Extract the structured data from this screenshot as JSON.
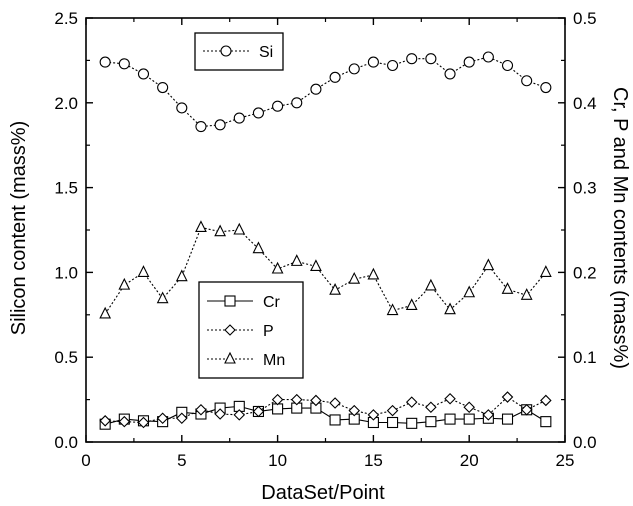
{
  "chart_data": {
    "type": "line",
    "xlabel": "DataSet/Point",
    "ylabel_left": "Silicon content (mass%)",
    "ylabel_right": "Cr, P and Mn contents (mass%)",
    "xlim": [
      0,
      25
    ],
    "ylim_left": [
      0,
      2.5
    ],
    "ylim_right": [
      0,
      0.5
    ],
    "x_ticks": [
      "0",
      "5",
      "10",
      "15",
      "20",
      "25"
    ],
    "y_left_ticks": [
      "0.0",
      "0.5",
      "1.0",
      "1.5",
      "2.0",
      "2.5"
    ],
    "y_right_ticks": [
      "0.0",
      "0.1",
      "0.2",
      "0.3",
      "0.4",
      "0.5"
    ],
    "grid": false,
    "x": [
      1,
      2,
      3,
      4,
      5,
      6,
      7,
      8,
      9,
      10,
      11,
      12,
      13,
      14,
      15,
      16,
      17,
      18,
      19,
      20,
      21,
      22,
      23,
      24
    ],
    "series": [
      {
        "name": "Si",
        "axis": "left",
        "marker": "circle",
        "line": "dotted",
        "values": [
          2.24,
          2.23,
          2.17,
          2.09,
          1.97,
          1.86,
          1.87,
          1.91,
          1.94,
          1.98,
          2.0,
          2.08,
          2.15,
          2.2,
          2.24,
          2.22,
          2.26,
          2.26,
          2.17,
          2.24,
          2.27,
          2.22,
          2.13,
          2.09
        ]
      },
      {
        "name": "Cr",
        "axis": "right",
        "marker": "square",
        "line": "solid",
        "values": [
          0.021,
          0.027,
          0.025,
          0.024,
          0.035,
          0.033,
          0.04,
          0.042,
          0.036,
          0.039,
          0.04,
          0.04,
          0.026,
          0.027,
          0.023,
          0.023,
          0.022,
          0.024,
          0.027,
          0.027,
          0.028,
          0.027,
          0.038,
          0.024
        ]
      },
      {
        "name": "P",
        "axis": "right",
        "marker": "diamond",
        "line": "dotted",
        "values": [
          0.025,
          0.024,
          0.023,
          0.028,
          0.028,
          0.038,
          0.033,
          0.032,
          0.036,
          0.05,
          0.05,
          0.049,
          0.046,
          0.037,
          0.032,
          0.037,
          0.047,
          0.041,
          0.051,
          0.041,
          0.032,
          0.053,
          0.038,
          0.049
        ]
      },
      {
        "name": "Mn",
        "axis": "right",
        "marker": "triangle",
        "line": "dotted",
        "values": [
          0.151,
          0.185,
          0.2,
          0.169,
          0.195,
          0.253,
          0.248,
          0.25,
          0.228,
          0.204,
          0.213,
          0.207,
          0.179,
          0.192,
          0.197,
          0.155,
          0.161,
          0.184,
          0.156,
          0.176,
          0.208,
          0.18,
          0.173,
          0.2
        ]
      }
    ],
    "legend_top": {
      "entries": [
        "Si"
      ]
    },
    "legend_bottom": {
      "entries": [
        "Cr",
        "P",
        "Mn"
      ]
    }
  }
}
